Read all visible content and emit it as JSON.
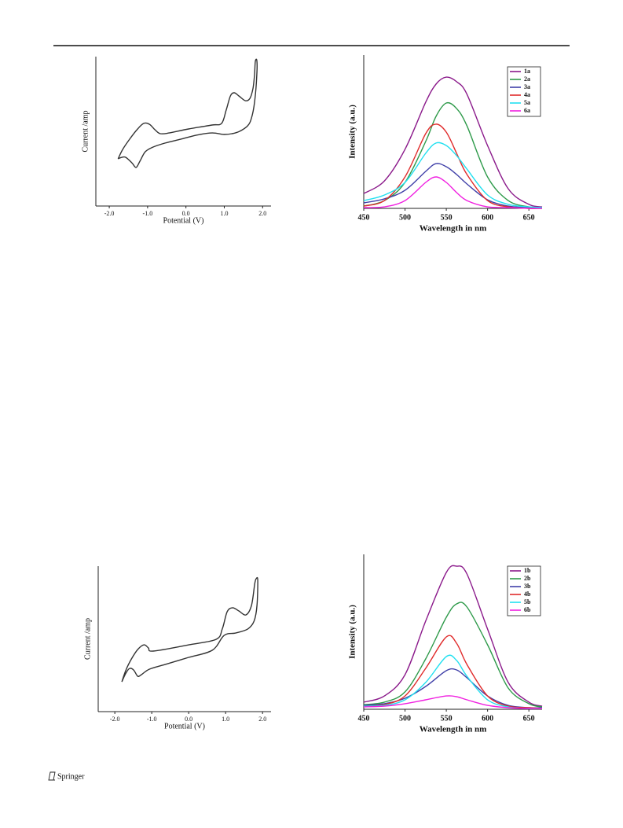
{
  "chart_data": [
    {
      "type": "line",
      "x_label": "Potential (V)",
      "y_label": "Current /amp",
      "color": "#333333",
      "xlim": [
        -2.35,
        2.22
      ],
      "ylim": [
        0,
        100
      ],
      "xticks": [
        {
          "value": -2,
          "label": "-2.0"
        },
        {
          "value": -1,
          "label": "-1.0"
        },
        {
          "value": 0,
          "label": "0.0"
        },
        {
          "value": 1,
          "label": "1.0"
        },
        {
          "value": 2,
          "label": "2.0"
        }
      ],
      "x": [
        -1.77,
        -1.65,
        -1.47,
        -1.26,
        -1.1,
        -0.95,
        -0.81,
        -0.67,
        -0.44,
        0.07,
        0.68,
        0.93,
        1.05,
        1.16,
        1.26,
        1.38,
        1.55,
        1.67,
        1.75,
        1.79,
        1.81,
        1.85,
        1.85,
        1.79,
        1.71,
        1.61,
        1.4,
        1.2,
        0.99,
        0.68,
        0.27,
        -0.14,
        -0.55,
        -0.85,
        -1.06,
        -1.2,
        -1.3,
        -1.41,
        -1.57,
        -1.67,
        -1.77
      ],
      "values": [
        31.6,
        37.9,
        44.7,
        51.6,
        55.3,
        54.7,
        51.1,
        48.4,
        48.9,
        51.6,
        54.2,
        55.3,
        64.2,
        73.7,
        75.8,
        73.7,
        70.5,
        72.1,
        78.9,
        87.9,
        96.8,
        97.4,
        87.9,
        69.5,
        58.9,
        53.7,
        50.0,
        48.4,
        47.9,
        48.9,
        47.4,
        44.7,
        42.1,
        39.5,
        36.3,
        30.0,
        25.8,
        28.9,
        32.6,
        32.6,
        31.6
      ]
    },
    {
      "type": "line",
      "x_label": "Wavelength in nm",
      "y_label": "Intensity (a.u.)",
      "legend": "upper right",
      "xlim": [
        450,
        666
      ],
      "ylim": [
        0,
        100
      ],
      "xticks": [
        450,
        500,
        550,
        600,
        650
      ],
      "x": [
        450,
        475,
        500,
        525,
        537.5,
        550,
        562.5,
        575,
        600,
        625,
        650,
        666
      ],
      "series": [
        {
          "name": "1a",
          "color": "#8b1a8b",
          "values": [
            9.7,
            17.9,
            38.5,
            69.2,
            81.0,
            85.6,
            82.6,
            74.4,
            41.0,
            12.8,
            2.6,
            1.0
          ]
        },
        {
          "name": "2a",
          "color": "#2e9a4a",
          "values": [
            1.5,
            5.1,
            16.9,
            43.6,
            60.0,
            68.7,
            65.1,
            53.8,
            20.5,
            5.1,
            1.0,
            0.5
          ]
        },
        {
          "name": "3a",
          "color": "#4040a8",
          "values": [
            3.6,
            6.2,
            11.8,
            24.1,
            29.2,
            27.2,
            22.1,
            15.9,
            5.6,
            1.5,
            0.5,
            0.5
          ]
        },
        {
          "name": "4a",
          "color": "#e02b2b",
          "values": [
            1.5,
            5.1,
            20.5,
            48.7,
            54.9,
            49.7,
            35.9,
            22.1,
            5.1,
            1.0,
            0,
            0
          ]
        },
        {
          "name": "5a",
          "color": "#22e0f0",
          "values": [
            5.1,
            8.7,
            16.9,
            35.9,
            42.6,
            41.0,
            34.4,
            25.6,
            8.7,
            2.6,
            1.0,
            0.5
          ]
        },
        {
          "name": "6a",
          "color": "#f020e0",
          "values": [
            0.5,
            1.0,
            5.1,
            16.9,
            20.5,
            16.9,
            10.3,
            5.1,
            1.0,
            0.5,
            0,
            0
          ]
        }
      ]
    },
    {
      "type": "line",
      "x_label": "Potential (V)",
      "y_label": "Current /amp",
      "color": "#333333",
      "xlim": [
        -2.45,
        2.23
      ],
      "ylim": [
        0,
        100
      ],
      "xticks": [
        {
          "value": -2,
          "label": "-2.0"
        },
        {
          "value": -1,
          "label": "-1.0"
        },
        {
          "value": 0,
          "label": "0.0"
        },
        {
          "value": 1,
          "label": "1.0"
        },
        {
          "value": 2,
          "label": "2.0"
        }
      ],
      "x": [
        -1.81,
        -1.7,
        -1.55,
        -1.38,
        -1.21,
        -1.09,
        -0.96,
        0.0,
        0.74,
        0.91,
        1.04,
        1.19,
        1.36,
        1.55,
        1.7,
        1.79,
        1.83,
        1.87,
        1.85,
        1.77,
        1.6,
        1.28,
        0.96,
        0.64,
        0.0,
        -0.64,
        -1.06,
        -1.28,
        -1.38,
        -1.49,
        -1.6,
        -1.7,
        -1.81
      ],
      "values": [
        20.5,
        28.6,
        36.2,
        42.7,
        45.9,
        43.8,
        41.6,
        45.9,
        49.7,
        56.8,
        68.6,
        71.4,
        69.2,
        66.5,
        73.0,
        88.1,
        91.4,
        90.3,
        73.0,
        62.2,
        56.8,
        54.1,
        52.4,
        42.2,
        37.3,
        32.4,
        29.2,
        25.4,
        24.3,
        28.6,
        29.7,
        26.5,
        20.5
      ]
    },
    {
      "type": "line",
      "x_label": "Wavelength in nm",
      "y_label": "Intensity (a.u.)",
      "legend": "upper right",
      "xlim": [
        450,
        666
      ],
      "ylim": [
        0,
        100
      ],
      "xticks": [
        450,
        500,
        550,
        600,
        650
      ],
      "x": [
        450,
        475,
        500,
        525,
        550,
        562.5,
        575,
        600,
        625,
        650,
        666
      ],
      "series": [
        {
          "name": "1b",
          "color": "#8b1a8b",
          "values": [
            4.6,
            8.6,
            22.3,
            56.9,
            88.3,
            92.4,
            87.3,
            51.8,
            17.3,
            4.6,
            2.0
          ]
        },
        {
          "name": "2b",
          "color": "#2e9a4a",
          "values": [
            3.0,
            4.6,
            11.2,
            32.5,
            59.4,
            68.0,
            66.0,
            41.6,
            13.7,
            3.6,
            1.5
          ]
        },
        {
          "name": "3b",
          "color": "#4040a8",
          "values": [
            2.5,
            3.6,
            7.1,
            14.7,
            24.9,
            25.4,
            20.3,
            8.6,
            2.5,
            1.0,
            1.0
          ]
        },
        {
          "name": "4b",
          "color": "#e02b2b",
          "values": [
            2.0,
            3.0,
            8.6,
            26.4,
            46.7,
            42.6,
            28.9,
            8.6,
            2.0,
            1.0,
            0.5
          ]
        },
        {
          "name": "5b",
          "color": "#22e0f0",
          "values": [
            2.0,
            2.5,
            6.1,
            17.3,
            34.0,
            31.5,
            21.3,
            6.1,
            1.5,
            0.5,
            0.5
          ]
        },
        {
          "name": "6b",
          "color": "#f020e0",
          "values": [
            1.5,
            2.0,
            3.6,
            6.1,
            8.6,
            8.1,
            6.1,
            2.5,
            1.0,
            0.5,
            0.5
          ]
        }
      ]
    }
  ],
  "footer": {
    "publisher": "Springer"
  }
}
